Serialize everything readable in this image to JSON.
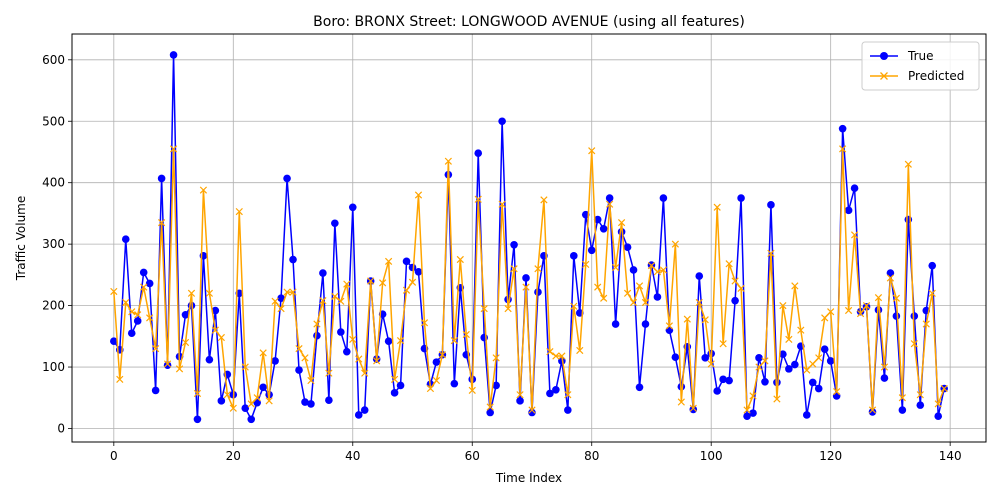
{
  "chart_data": {
    "type": "line",
    "title": "Boro: BRONX Street: LONGWOOD AVENUE (using all features)",
    "xlabel": "Time Index",
    "ylabel": "Traffic Volume",
    "xlim": [
      -7,
      146
    ],
    "ylim": [
      -22,
      642
    ],
    "xticks": [
      0,
      20,
      40,
      60,
      80,
      100,
      120,
      140
    ],
    "yticks": [
      0,
      100,
      200,
      300,
      400,
      500,
      600
    ],
    "grid": true,
    "legend": "top-right",
    "series": [
      {
        "name": "True",
        "color": "#0000ff",
        "marker": "circle",
        "values": [
          142,
          128,
          308,
          155,
          175,
          254,
          236,
          62,
          407,
          103,
          608,
          117,
          185,
          200,
          15,
          281,
          112,
          192,
          45,
          88,
          55,
          220,
          33,
          15,
          42,
          67,
          55,
          110,
          212,
          407,
          275,
          95,
          43,
          40,
          151,
          253,
          46,
          334,
          157,
          125,
          360,
          22,
          30,
          240,
          113,
          186,
          142,
          58,
          70,
          272,
          262,
          255,
          130,
          72,
          108,
          120,
          413,
          73,
          229,
          120,
          80,
          448,
          148,
          26,
          70,
          500,
          210,
          299,
          45,
          245,
          26,
          222,
          281,
          57,
          63,
          110,
          30,
          281,
          188,
          348,
          290,
          340,
          325,
          375,
          170,
          320,
          295,
          258,
          67,
          170,
          266,
          214,
          375,
          160,
          116,
          68,
          133,
          31,
          248,
          115,
          122,
          61,
          80,
          78,
          208,
          375,
          20,
          25,
          115,
          76,
          364,
          75,
          121,
          97,
          104,
          134,
          22,
          75,
          65,
          129,
          110,
          53,
          488,
          355,
          391,
          190,
          198,
          27,
          193,
          82,
          253,
          183,
          30,
          340,
          183,
          38,
          192,
          265,
          20,
          65
        ]
      },
      {
        "name": "Predicted",
        "color": "#ffa500",
        "marker": "x",
        "values": [
          223,
          80,
          205,
          190,
          185,
          230,
          180,
          130,
          335,
          105,
          455,
          97,
          140,
          220,
          57,
          388,
          220,
          160,
          148,
          55,
          33,
          353,
          100,
          40,
          50,
          123,
          45,
          207,
          195,
          222,
          222,
          130,
          115,
          78,
          170,
          208,
          90,
          215,
          207,
          235,
          145,
          113,
          90,
          240,
          110,
          237,
          272,
          80,
          143,
          225,
          238,
          380,
          172,
          65,
          78,
          120,
          435,
          143,
          275,
          153,
          62,
          373,
          195,
          35,
          115,
          365,
          195,
          260,
          55,
          230,
          30,
          260,
          372,
          125,
          118,
          118,
          55,
          199,
          127,
          267,
          452,
          230,
          212,
          365,
          262,
          335,
          220,
          205,
          232,
          205,
          265,
          255,
          258,
          167,
          300,
          43,
          178,
          33,
          205,
          177,
          105,
          360,
          138,
          268,
          240,
          228,
          30,
          53,
          100,
          110,
          285,
          48,
          200,
          145,
          232,
          160,
          95,
          105,
          115,
          180,
          190,
          60,
          455,
          192,
          315,
          187,
          200,
          30,
          213,
          100,
          245,
          212,
          50,
          430,
          138,
          55,
          170,
          220,
          40,
          65
        ]
      }
    ]
  }
}
